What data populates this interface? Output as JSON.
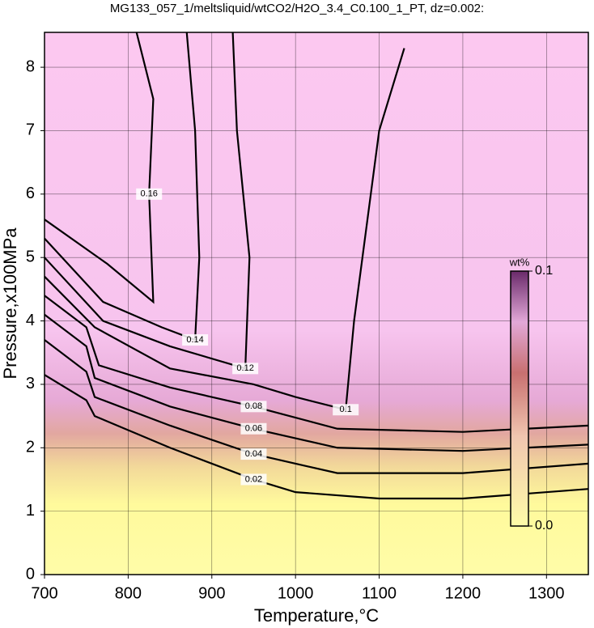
{
  "chart_data": {
    "type": "contour",
    "title": "MG133_057_1/meltsliquid/wtCO2/H2O_3.4_C0.100_1_PT, dz=0.002:",
    "xlabel": "Temperature,°C",
    "ylabel": "Pressure,x100MPa",
    "xlim": [
      700,
      1350
    ],
    "ylim": [
      0,
      8.55
    ],
    "xticks": [
      700,
      800,
      900,
      1000,
      1100,
      1200,
      1300
    ],
    "yticks": [
      0,
      1,
      2,
      3,
      4,
      5,
      6,
      7,
      8
    ],
    "grid": true,
    "colorbar": {
      "label": "wt%",
      "clim": [
        0,
        0.1
      ],
      "ticks": [
        {
          "value": 0,
          "label": "0.0"
        },
        0.1
      ]
    },
    "contours": [
      {
        "level": 0.02,
        "x": [
          700,
          750,
          760,
          850,
          950,
          1000,
          1100,
          1200,
          1350
        ],
        "y": [
          3.15,
          2.75,
          2.5,
          2.0,
          1.5,
          1.3,
          1.2,
          1.2,
          1.35
        ]
      },
      {
        "level": 0.04,
        "x": [
          700,
          750,
          760,
          850,
          950,
          1050,
          1200,
          1350
        ],
        "y": [
          3.7,
          3.2,
          2.8,
          2.35,
          1.9,
          1.6,
          1.6,
          1.75
        ]
      },
      {
        "level": 0.06,
        "x": [
          700,
          750,
          760,
          850,
          950,
          1050,
          1200,
          1350
        ],
        "y": [
          4.1,
          3.6,
          3.1,
          2.65,
          2.3,
          2.0,
          1.95,
          2.05
        ]
      },
      {
        "level": 0.08,
        "x": [
          700,
          750,
          765,
          850,
          950,
          1050,
          1200,
          1350
        ],
        "y": [
          4.4,
          3.9,
          3.3,
          2.95,
          2.65,
          2.3,
          2.25,
          2.35
        ]
      },
      {
        "level": 0.1,
        "x": [
          700,
          760,
          850,
          950,
          1000,
          1060,
          1070,
          1080,
          1100,
          1130
        ],
        "y": [
          4.7,
          3.9,
          3.25,
          3.0,
          2.8,
          2.6,
          4.0,
          5.0,
          7.0,
          8.3
        ]
      },
      {
        "level": 0.12,
        "x": [
          700,
          770,
          850,
          940,
          945,
          930,
          925
        ],
        "y": [
          5.0,
          4.0,
          3.6,
          3.25,
          5.0,
          7.0,
          8.55
        ]
      },
      {
        "level": 0.14,
        "x": [
          700,
          770,
          840,
          880,
          885,
          880,
          870
        ],
        "y": [
          5.3,
          4.3,
          3.9,
          3.7,
          5.0,
          7.0,
          8.55
        ]
      },
      {
        "level": 0.16,
        "x": [
          700,
          775,
          830,
          825,
          830,
          810
        ],
        "y": [
          5.6,
          4.9,
          4.3,
          6.0,
          7.5,
          8.55
        ]
      }
    ]
  }
}
